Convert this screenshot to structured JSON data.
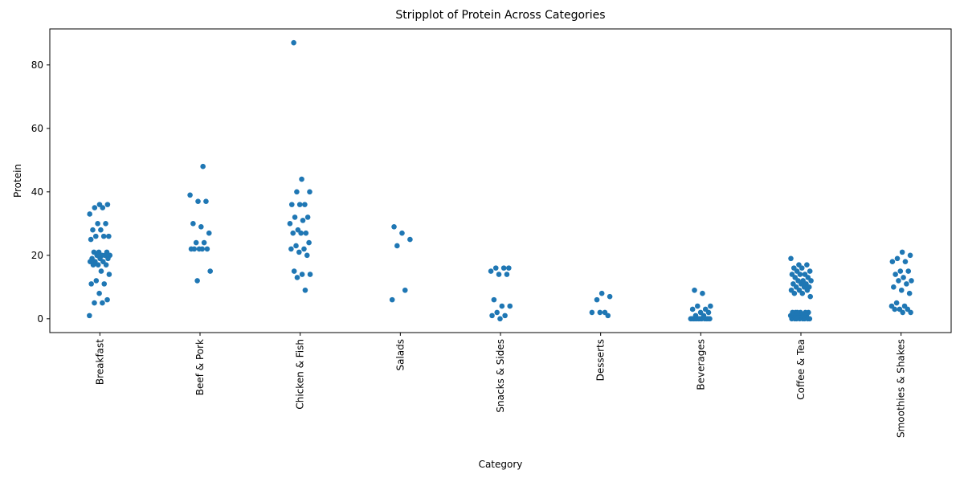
{
  "chart_data": {
    "type": "strip",
    "title": "Stripplot of Protein Across Categories",
    "xlabel": "Category",
    "ylabel": "Protein",
    "categories": [
      "Breakfast",
      "Beef & Pork",
      "Chicken & Fish",
      "Salads",
      "Snacks & Sides",
      "Desserts",
      "Beverages",
      "Coffee & Tea",
      "Smoothies & Shakes"
    ],
    "values": [
      [
        1,
        5,
        5,
        6,
        8,
        11,
        11,
        12,
        14,
        15,
        17,
        17,
        17,
        18,
        18,
        18,
        19,
        19,
        19,
        20,
        20,
        20,
        20,
        21,
        21,
        21,
        25,
        26,
        26,
        26,
        28,
        28,
        30,
        30,
        33,
        35,
        35,
        36,
        36
      ],
      [
        12,
        15,
        22,
        22,
        22,
        22,
        22,
        24,
        24,
        27,
        29,
        30,
        37,
        37,
        39,
        48
      ],
      [
        9,
        13,
        14,
        14,
        15,
        20,
        21,
        22,
        22,
        23,
        24,
        27,
        27,
        27,
        28,
        30,
        31,
        32,
        32,
        36,
        36,
        36,
        40,
        40,
        44,
        87
      ],
      [
        6,
        9,
        23,
        25,
        27,
        29
      ],
      [
        0,
        1,
        1,
        2,
        4,
        4,
        6,
        14,
        14,
        15,
        16,
        16,
        16
      ],
      [
        1,
        2,
        2,
        2,
        6,
        7,
        8
      ],
      [
        0,
        0,
        0,
        0,
        0,
        0,
        0,
        0,
        0,
        0,
        0,
        0,
        1,
        1,
        2,
        2,
        3,
        3,
        4,
        4,
        8,
        9
      ],
      [
        0,
        0,
        0,
        0,
        0,
        0,
        0,
        0,
        1,
        1,
        1,
        1,
        1,
        1,
        2,
        2,
        2,
        2,
        2,
        2,
        7,
        8,
        8,
        9,
        9,
        9,
        10,
        10,
        10,
        11,
        11,
        11,
        12,
        12,
        12,
        13,
        13,
        14,
        14,
        14,
        15,
        15,
        16,
        16,
        17,
        17,
        19
      ],
      [
        2,
        2,
        3,
        3,
        3,
        4,
        4,
        5,
        8,
        9,
        10,
        11,
        12,
        12,
        13,
        14,
        15,
        15,
        18,
        18,
        19,
        20,
        21
      ]
    ],
    "color": "#1f77b4",
    "ylim": [
      -4.35,
      91.35
    ],
    "yticks": [
      0,
      20,
      40,
      60,
      80
    ]
  }
}
